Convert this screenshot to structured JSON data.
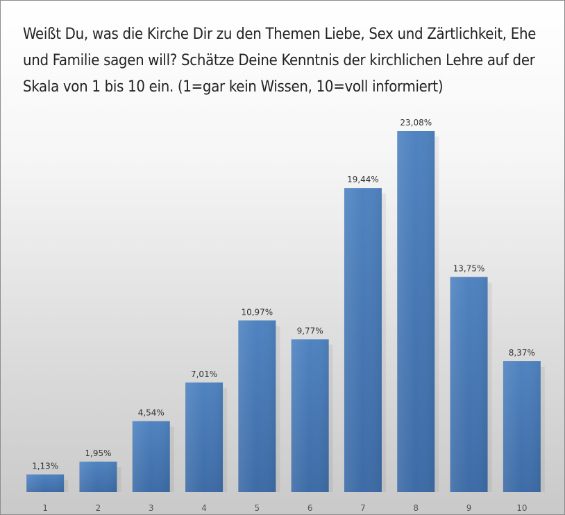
{
  "chart_data": {
    "type": "bar",
    "title": "Weißt Du, was die Kirche Dir zu den Themen Liebe, Sex und Zärtlichkeit, Ehe und Familie  sagen will? Schätze Deine Kenntnis der kirchlichen Lehre auf der Skala von 1 bis 10 ein. (1=gar kein Wissen, 10=voll informiert)",
    "categories": [
      "1",
      "2",
      "3",
      "4",
      "5",
      "6",
      "7",
      "8",
      "9",
      "10"
    ],
    "values": [
      1.13,
      1.95,
      4.54,
      7.01,
      10.97,
      9.77,
      19.44,
      23.08,
      13.75,
      8.37
    ],
    "data_labels": [
      "1,13%",
      "1,95%",
      "4,54%",
      "7,01%",
      "10,97%",
      "9,77%",
      "19,44%",
      "23,08%",
      "13,75%",
      "8,37%"
    ],
    "xlabel": "",
    "ylabel": "",
    "ylim": [
      0,
      23.08
    ],
    "grid": false,
    "legend": "none",
    "bar_color": "#4a7ebb"
  }
}
